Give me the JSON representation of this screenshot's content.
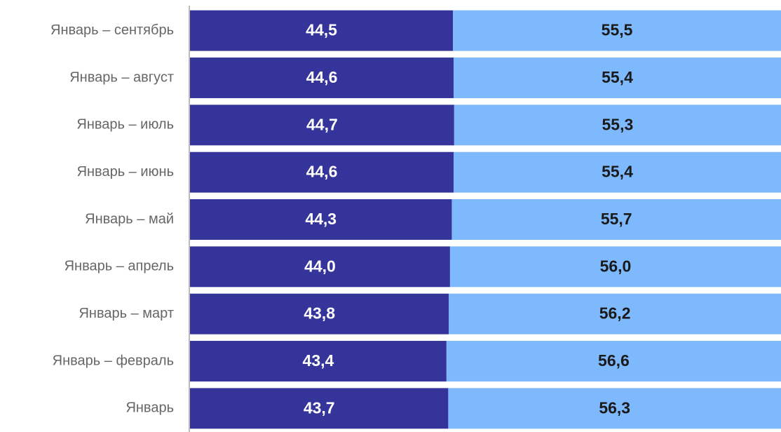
{
  "chart_data": {
    "type": "stacked_bar_horizontal",
    "categories": [
      "Январь – сентябрь",
      "Январь – август",
      "Январь – июль",
      "Январь – июнь",
      "Январь – май",
      "Январь – апрель",
      "Январь – март",
      "Январь – февраль",
      "Январь"
    ],
    "series": [
      {
        "color": "#34349a",
        "label_color": "#ffffff",
        "values": [
          44.5,
          44.6,
          44.7,
          44.6,
          44.3,
          44.0,
          43.8,
          43.4,
          43.7
        ],
        "value_labels": [
          "44,5",
          "44,6",
          "44,7",
          "44,6",
          "44,3",
          "44,0",
          "43,8",
          "43,4",
          "43,7"
        ]
      },
      {
        "color": "#7db9fc",
        "label_color": "#1a1a1a",
        "values": [
          55.5,
          55.4,
          55.3,
          55.4,
          55.7,
          56.0,
          56.2,
          56.6,
          56.3
        ],
        "value_labels": [
          "55,5",
          "55,4",
          "55,3",
          "55,4",
          "55,7",
          "56,0",
          "56,2",
          "56,6",
          "56,3"
        ]
      }
    ],
    "xlim": [
      0,
      100
    ]
  }
}
